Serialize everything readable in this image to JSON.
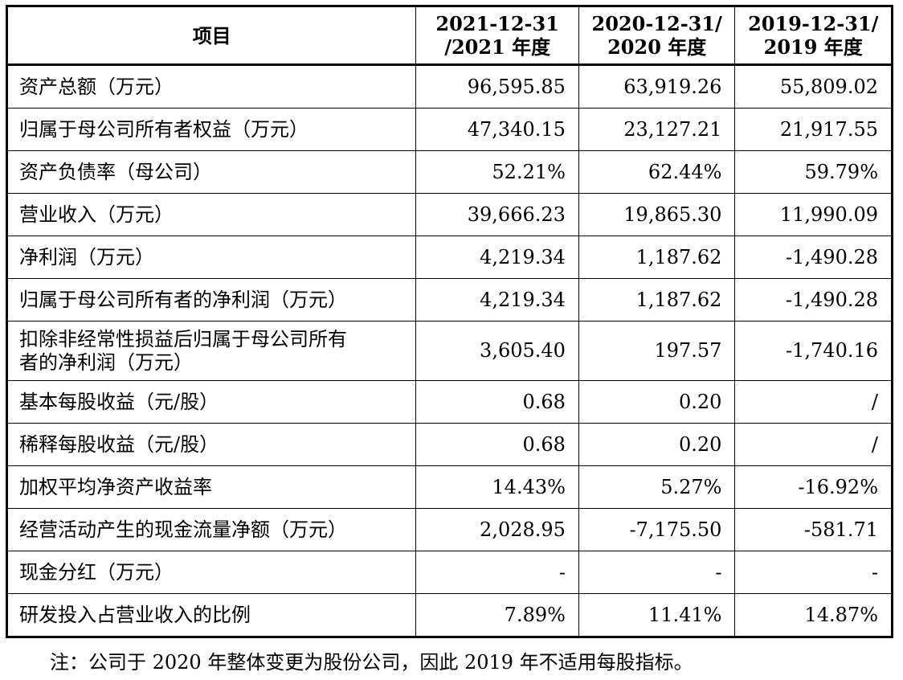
{
  "table": {
    "headers": {
      "item": "项目",
      "col1_line1": "2021-12-31",
      "col1_line2": "/2021 年度",
      "col2_line1": "2020-12-31/",
      "col2_line2": "2020 年度",
      "col3_line1": "2019-12-31/",
      "col3_line2": "2019 年度"
    },
    "rows": [
      {
        "label": "资产总额（万元）",
        "v2021": "96,595.85",
        "v2020": "63,919.26",
        "v2019": "55,809.02"
      },
      {
        "label": "归属于母公司所有者权益（万元）",
        "v2021": "47,340.15",
        "v2020": "23,127.21",
        "v2019": "21,917.55"
      },
      {
        "label": "资产负债率（母公司）",
        "v2021": "52.21%",
        "v2020": "62.44%",
        "v2019": "59.79%"
      },
      {
        "label": "营业收入（万元）",
        "v2021": "39,666.23",
        "v2020": "19,865.30",
        "v2019": "11,990.09"
      },
      {
        "label": "净利润（万元）",
        "v2021": "4,219.34",
        "v2020": "1,187.62",
        "v2019": "-1,490.28"
      },
      {
        "label": "归属于母公司所有者的净利润（万元）",
        "v2021": "4,219.34",
        "v2020": "1,187.62",
        "v2019": "-1,490.28"
      },
      {
        "label_line1": "扣除非经常性损益后归属于母公司所有",
        "label_line2": "者的净利润（万元）",
        "v2021": "3,605.40",
        "v2020": "197.57",
        "v2019": "-1,740.16"
      },
      {
        "label": "基本每股收益（元/股）",
        "v2021": "0.68",
        "v2020": "0.20",
        "v2019": "/"
      },
      {
        "label": "稀释每股收益（元/股）",
        "v2021": "0.68",
        "v2020": "0.20",
        "v2019": "/"
      },
      {
        "label": "加权平均净资产收益率",
        "v2021": "14.43%",
        "v2020": "5.27%",
        "v2019": "-16.92%"
      },
      {
        "label": "经营活动产生的现金流量净额（万元）",
        "v2021": "2,028.95",
        "v2020": "-7,175.50",
        "v2019": "-581.71"
      },
      {
        "label": "现金分红（万元）",
        "v2021": "-",
        "v2020": "-",
        "v2019": "-"
      },
      {
        "label": "研发投入占营业收入的比例",
        "v2021": "7.89%",
        "v2020": "11.41%",
        "v2019": "14.87%"
      }
    ]
  },
  "note": "注：公司于 2020 年整体变更为股份公司，因此 2019 年不适用每股指标。"
}
